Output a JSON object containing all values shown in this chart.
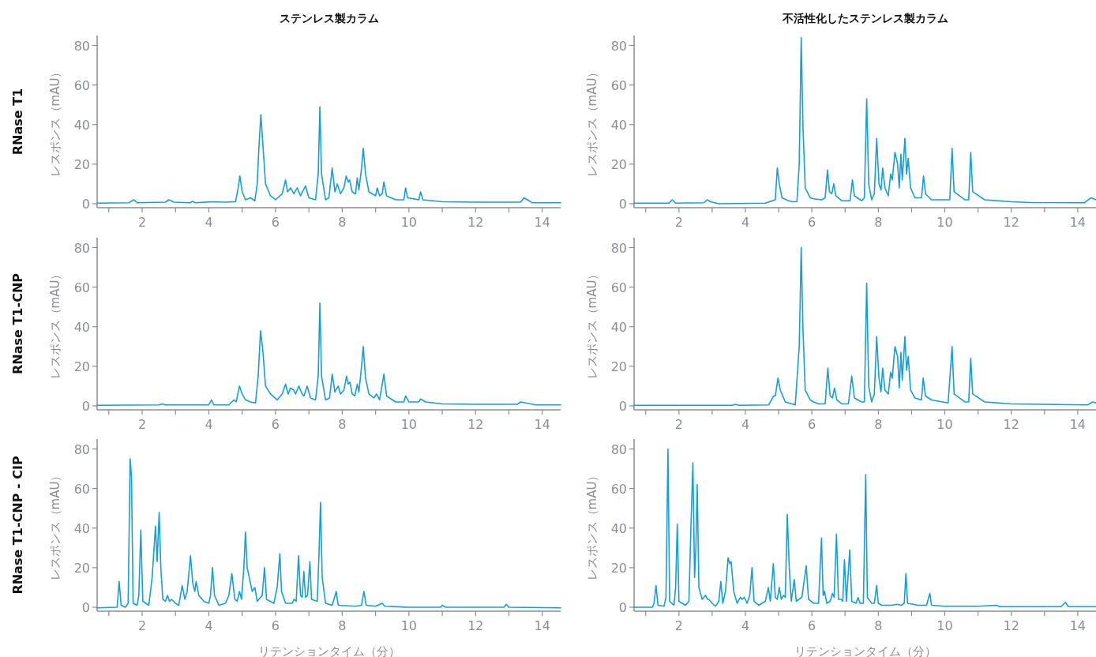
{
  "chart_data": [
    {
      "type": "line",
      "title": "ステンレス製カラム",
      "ylabel": "レスポンス（mAU）",
      "annotations": [
        "RNase T1"
      ],
      "color": "#129fdf",
      "xlim": [
        0.65,
        14.55
      ],
      "ylim": [
        -2,
        85
      ],
      "xticks": [
        {
          "value": 1,
          "label": null
        },
        2,
        {
          "value": 3,
          "label": null
        },
        4,
        {
          "value": 5,
          "label": null
        },
        6,
        {
          "value": 7,
          "label": null
        },
        8,
        {
          "value": 9,
          "label": null
        },
        10,
        {
          "value": 11,
          "label": null
        },
        12,
        {
          "value": 13,
          "label": null
        },
        14
      ],
      "yticks": [
        0,
        20,
        40,
        60,
        80
      ],
      "x": [
        0.65,
        1.6,
        1.75,
        1.85,
        2.7,
        2.8,
        2.95,
        3.45,
        3.5,
        3.6,
        4.1,
        4.5,
        4.8,
        4.88,
        4.93,
        5.0,
        5.1,
        5.25,
        5.38,
        5.45,
        5.5,
        5.56,
        5.62,
        5.7,
        5.85,
        6.0,
        6.2,
        6.3,
        6.36,
        6.45,
        6.55,
        6.65,
        6.75,
        6.9,
        7.0,
        7.2,
        7.28,
        7.33,
        7.38,
        7.5,
        7.6,
        7.7,
        7.78,
        7.85,
        7.95,
        8.05,
        8.12,
        8.18,
        8.22,
        8.3,
        8.4,
        8.45,
        8.5,
        8.58,
        8.63,
        8.7,
        8.8,
        9.0,
        9.05,
        9.12,
        9.2,
        9.25,
        9.33,
        9.6,
        9.85,
        9.9,
        9.96,
        10.3,
        10.35,
        10.42,
        11,
        12,
        13.35,
        13.45,
        13.55,
        13.7,
        14.55
      ],
      "values": [
        0.3,
        0.5,
        2,
        0.5,
        0.8,
        2,
        0.8,
        0.5,
        1.2,
        0.5,
        1,
        0.8,
        1,
        8,
        14,
        6,
        2,
        3,
        1.5,
        10,
        28,
        45,
        30,
        10,
        4,
        2,
        5,
        12,
        6,
        8,
        5,
        8,
        4,
        9,
        3,
        2,
        15,
        49,
        15,
        2,
        3,
        18,
        6,
        10,
        5,
        8,
        14,
        11,
        12,
        6,
        5,
        13,
        7,
        18,
        28,
        15,
        6,
        4,
        8,
        4,
        5,
        11,
        4,
        2,
        2,
        8,
        3,
        2,
        6,
        2,
        1,
        0.8,
        0.8,
        3,
        2,
        0.5,
        0.5
      ]
    },
    {
      "type": "line",
      "title": "不活性化したステンレス製カラム",
      "ylabel": "レスポンス（mAU）",
      "color": "#129fdf",
      "xlim": [
        0.65,
        14.55
      ],
      "ylim": [
        -2,
        85
      ],
      "xticks": [
        {
          "value": 1,
          "label": null
        },
        2,
        {
          "value": 3,
          "label": null
        },
        4,
        {
          "value": 5,
          "label": null
        },
        6,
        {
          "value": 7,
          "label": null
        },
        8,
        {
          "value": 9,
          "label": null
        },
        10,
        {
          "value": 11,
          "label": null
        },
        12,
        {
          "value": 13,
          "label": null
        },
        14
      ],
      "yticks": [
        0,
        20,
        40,
        60,
        80
      ],
      "x": [
        0.65,
        1.7,
        1.8,
        1.9,
        2.75,
        2.85,
        2.95,
        3.2,
        4.6,
        4.9,
        4.96,
        5.02,
        5.1,
        5.3,
        5.4,
        5.55,
        5.62,
        5.68,
        5.73,
        5.8,
        5.95,
        6.05,
        6.3,
        6.4,
        6.47,
        6.53,
        6.6,
        6.66,
        6.72,
        6.9,
        7.15,
        7.22,
        7.28,
        7.5,
        7.58,
        7.65,
        7.71,
        7.8,
        7.88,
        7.95,
        8.02,
        8.08,
        8.13,
        8.2,
        8.3,
        8.37,
        8.42,
        8.5,
        8.58,
        8.63,
        8.68,
        8.72,
        8.8,
        8.85,
        8.9,
        8.97,
        9.1,
        9.3,
        9.36,
        9.42,
        9.6,
        10.15,
        10.22,
        10.28,
        10.6,
        10.72,
        10.78,
        10.84,
        11.2,
        12.0,
        12.6,
        14.2,
        14.4,
        14.55
      ],
      "values": [
        0.3,
        0.3,
        2,
        0.3,
        0.5,
        2,
        1,
        0,
        0.3,
        2,
        18,
        10,
        3,
        1.5,
        1,
        1,
        20,
        84,
        40,
        8,
        3,
        2.5,
        2,
        3,
        17,
        6,
        5,
        10,
        4,
        1.5,
        1.5,
        12,
        4,
        1.5,
        3,
        53,
        10,
        2,
        5,
        33,
        10,
        7,
        18,
        8,
        4,
        15,
        12,
        26,
        20,
        8,
        25,
        12,
        33,
        15,
        23,
        8,
        3,
        3,
        14,
        5,
        2,
        2,
        28,
        6,
        2,
        2,
        26,
        6,
        2,
        1,
        0.6,
        0.5,
        3,
        2
      ]
    },
    {
      "type": "line",
      "ylabel": "レスポンス（mAU）",
      "annotations": [
        "RNase T1-CNP"
      ],
      "color": "#129fdf",
      "xlim": [
        0.65,
        14.55
      ],
      "ylim": [
        -2,
        85
      ],
      "xticks": [
        {
          "value": 1,
          "label": null
        },
        2,
        {
          "value": 3,
          "label": null
        },
        4,
        {
          "value": 5,
          "label": null
        },
        6,
        {
          "value": 7,
          "label": null
        },
        8,
        {
          "value": 9,
          "label": null
        },
        10,
        {
          "value": 11,
          "label": null
        },
        12,
        {
          "value": 13,
          "label": null
        },
        14
      ],
      "yticks": [
        0,
        20,
        40,
        60,
        80
      ],
      "x": [
        0.65,
        2.5,
        2.6,
        2.7,
        4.0,
        4.08,
        4.15,
        4.6,
        4.75,
        4.82,
        4.92,
        5.0,
        5.1,
        5.25,
        5.4,
        5.48,
        5.55,
        5.62,
        5.7,
        5.85,
        6.05,
        6.2,
        6.3,
        6.38,
        6.45,
        6.55,
        6.6,
        6.7,
        6.8,
        6.85,
        6.95,
        7.05,
        7.2,
        7.28,
        7.33,
        7.38,
        7.5,
        7.62,
        7.7,
        7.78,
        7.88,
        7.95,
        8.05,
        8.13,
        8.18,
        8.23,
        8.3,
        8.38,
        8.45,
        8.5,
        8.58,
        8.63,
        8.7,
        8.8,
        8.95,
        9.03,
        9.12,
        9.25,
        9.33,
        9.6,
        9.85,
        9.9,
        10.0,
        10.3,
        10.35,
        10.5,
        11,
        12,
        13.25,
        13.35,
        13.5,
        13.8,
        14.55
      ],
      "values": [
        0.3,
        0.5,
        1,
        0.5,
        0.5,
        3,
        0.5,
        0.5,
        3,
        2,
        10,
        6,
        3,
        2,
        1.5,
        15,
        38,
        28,
        10,
        6,
        3,
        6,
        11,
        6,
        9,
        8,
        6,
        10,
        6,
        5,
        10,
        4,
        3,
        15,
        52,
        15,
        3,
        4,
        16,
        7,
        10,
        6,
        8,
        15,
        11,
        12,
        6,
        5,
        11,
        7,
        20,
        30,
        14,
        6,
        4,
        6,
        3,
        16,
        5,
        2,
        2,
        5,
        2,
        2,
        3.5,
        2,
        1,
        0.8,
        0.8,
        2,
        1.5,
        0.5,
        0.5
      ]
    },
    {
      "type": "line",
      "ylabel": "レスポンス（mAU）",
      "color": "#129fdf",
      "xlim": [
        0.65,
        14.55
      ],
      "ylim": [
        -2,
        85
      ],
      "xticks": [
        {
          "value": 1,
          "label": null
        },
        2,
        {
          "value": 3,
          "label": null
        },
        4,
        {
          "value": 5,
          "label": null
        },
        6,
        {
          "value": 7,
          "label": null
        },
        8,
        {
          "value": 9,
          "label": null
        },
        10,
        {
          "value": 11,
          "label": null
        },
        12,
        {
          "value": 13,
          "label": null
        },
        14
      ],
      "yticks": [
        0,
        20,
        40,
        60,
        80
      ],
      "x": [
        0.65,
        3.6,
        3.7,
        3.8,
        4.7,
        4.85,
        4.9,
        4.98,
        5.05,
        5.2,
        5.5,
        5.62,
        5.68,
        5.73,
        5.8,
        5.95,
        6.05,
        6.2,
        6.4,
        6.48,
        6.55,
        6.62,
        6.68,
        6.75,
        6.9,
        7.1,
        7.2,
        7.28,
        7.5,
        7.58,
        7.65,
        7.71,
        7.8,
        7.88,
        7.95,
        8.02,
        8.08,
        8.13,
        8.2,
        8.3,
        8.37,
        8.42,
        8.5,
        8.58,
        8.63,
        8.68,
        8.72,
        8.8,
        8.85,
        8.9,
        8.97,
        9.1,
        9.3,
        9.35,
        9.42,
        9.6,
        10.1,
        10.22,
        10.28,
        10.6,
        10.72,
        10.78,
        10.84,
        11.2,
        12.0,
        14.3,
        14.45,
        14.55
      ],
      "values": [
        0.3,
        0.3,
        0.8,
        0.3,
        0.5,
        5,
        5,
        14,
        8,
        2,
        0.5,
        30,
        80,
        40,
        8,
        3,
        2,
        1,
        1,
        19,
        5,
        4,
        9,
        3,
        1,
        1,
        15,
        4,
        2,
        2,
        62,
        10,
        2,
        6,
        35,
        14,
        7,
        19,
        8,
        6,
        17,
        14,
        30,
        25,
        9,
        27,
        13,
        35,
        18,
        25,
        8,
        4,
        3,
        14,
        5,
        3,
        1.5,
        30,
        6,
        2,
        2,
        24,
        6,
        2,
        1,
        0.5,
        2,
        1.5
      ]
    },
    {
      "type": "line",
      "ylabel": "レスポンス（mAU）",
      "xlabel": "リテンションタイム（分）",
      "annotations": [
        "RNase T1-CNP - CIP"
      ],
      "color": "#129fdf",
      "xlim": [
        0.65,
        14.55
      ],
      "ylim": [
        -2,
        85
      ],
      "xticks": [
        {
          "value": 1,
          "label": null
        },
        2,
        {
          "value": 3,
          "label": null
        },
        4,
        {
          "value": 5,
          "label": null
        },
        6,
        {
          "value": 7,
          "label": null
        },
        8,
        {
          "value": 9,
          "label": null
        },
        10,
        {
          "value": 11,
          "label": null
        },
        12,
        {
          "value": 13,
          "label": null
        },
        14
      ],
      "yticks": [
        0,
        20,
        40,
        60,
        80
      ],
      "x": [
        0.65,
        1.25,
        1.31,
        1.37,
        1.5,
        1.58,
        1.64,
        1.68,
        1.73,
        1.85,
        1.9,
        1.96,
        2.02,
        2.2,
        2.3,
        2.4,
        2.45,
        2.51,
        2.56,
        2.62,
        2.7,
        2.76,
        2.82,
        2.88,
        3.0,
        3.1,
        3.2,
        3.28,
        3.35,
        3.45,
        3.52,
        3.58,
        3.62,
        3.7,
        3.85,
        4.0,
        4.05,
        4.11,
        4.17,
        4.3,
        4.5,
        4.6,
        4.69,
        4.78,
        4.85,
        4.92,
        4.98,
        5.05,
        5.1,
        5.15,
        5.2,
        5.3,
        5.38,
        5.45,
        5.6,
        5.67,
        5.73,
        5.95,
        6.05,
        6.13,
        6.18,
        6.3,
        6.5,
        6.55,
        6.62,
        6.69,
        6.75,
        6.8,
        6.85,
        6.9,
        6.96,
        7.03,
        7.08,
        7.25,
        7.3,
        7.35,
        7.4,
        7.5,
        7.7,
        7.82,
        7.88,
        8.4,
        8.58,
        8.65,
        8.72,
        9.0,
        9.2,
        9.28,
        10,
        10.95,
        11.0,
        11.1,
        12.85,
        12.92,
        13.0,
        14.55
      ],
      "values": [
        -0.3,
        0,
        13,
        1,
        0,
        2,
        75,
        66,
        2,
        1,
        6,
        39,
        3,
        1,
        15,
        41,
        23,
        48,
        20,
        4,
        3,
        6,
        3,
        4,
        2,
        1,
        11,
        4,
        8,
        26,
        12,
        8,
        13,
        6,
        3,
        2,
        6,
        20,
        6,
        1,
        2,
        6,
        17,
        4,
        3,
        8,
        4,
        20,
        38,
        20,
        16,
        8,
        10,
        3,
        6,
        20,
        4,
        2,
        10,
        27,
        8,
        2,
        2,
        4,
        3,
        26,
        6,
        5,
        18,
        5,
        6,
        23,
        4,
        3,
        25,
        53,
        15,
        2,
        1,
        8,
        1,
        0.5,
        1,
        8,
        1,
        0.5,
        2,
        0.5,
        0,
        0,
        1,
        0,
        0,
        1.5,
        0,
        -0.3
      ]
    },
    {
      "type": "line",
      "ylabel": "レスポンス（mAU）",
      "xlabel": "リテンションタイム（分）",
      "color": "#129fdf",
      "xlim": [
        0.65,
        14.55
      ],
      "ylim": [
        -2,
        85
      ],
      "xticks": [
        {
          "value": 1,
          "label": null
        },
        2,
        {
          "value": 3,
          "label": null
        },
        4,
        {
          "value": 5,
          "label": null
        },
        6,
        {
          "value": 7,
          "label": null
        },
        8,
        {
          "value": 9,
          "label": null
        },
        10,
        {
          "value": 11,
          "label": null
        },
        12,
        {
          "value": 13,
          "label": null
        },
        14
      ],
      "yticks": [
        0,
        20,
        40,
        60,
        80
      ],
      "x": [
        0.65,
        1.2,
        1.25,
        1.31,
        1.37,
        1.55,
        1.61,
        1.67,
        1.72,
        1.85,
        1.9,
        1.95,
        2.0,
        2.2,
        2.3,
        2.36,
        2.42,
        2.47,
        2.51,
        2.55,
        2.6,
        2.7,
        2.8,
        2.86,
        2.9,
        3.0,
        3.1,
        3.2,
        3.26,
        3.32,
        3.4,
        3.48,
        3.53,
        3.57,
        3.65,
        3.75,
        3.85,
        3.9,
        3.97,
        4.05,
        4.13,
        4.2,
        4.26,
        4.4,
        4.6,
        4.69,
        4.75,
        4.84,
        4.9,
        4.96,
        5.02,
        5.08,
        5.15,
        5.2,
        5.26,
        5.32,
        5.38,
        5.47,
        5.53,
        5.7,
        5.83,
        5.9,
        6.05,
        6.2,
        6.29,
        6.34,
        6.38,
        6.45,
        6.55,
        6.62,
        6.67,
        6.74,
        6.8,
        6.88,
        6.93,
        6.98,
        7.04,
        7.14,
        7.2,
        7.33,
        7.39,
        7.45,
        7.55,
        7.62,
        7.67,
        7.8,
        7.88,
        7.95,
        8.0,
        8.1,
        8.4,
        8.55,
        8.7,
        8.78,
        8.83,
        8.88,
        9.2,
        9.45,
        9.55,
        9.6,
        10,
        11.0,
        11.55,
        11.65,
        13.5,
        13.63,
        13.72,
        14.55
      ],
      "values": [
        0,
        0,
        2,
        11,
        1,
        0.5,
        5,
        80,
        3,
        1,
        10,
        42,
        3,
        1,
        3,
        40,
        73,
        15,
        30,
        62,
        10,
        4,
        6,
        4,
        4,
        2,
        0.5,
        3,
        13,
        2,
        8,
        25,
        22,
        23,
        8,
        2,
        5,
        4,
        5,
        2,
        6,
        20,
        3,
        1,
        3,
        10,
        3,
        22,
        5,
        4,
        10,
        4,
        6,
        5,
        47,
        20,
        3,
        14,
        3,
        5,
        21,
        4,
        2,
        2,
        35,
        6,
        8,
        2,
        3,
        7,
        5,
        37,
        4,
        4,
        3,
        24,
        3,
        29,
        3,
        2,
        5,
        2,
        2,
        67,
        5,
        2,
        2,
        11,
        2,
        1,
        1,
        1.5,
        1,
        2,
        17,
        2,
        1,
        1,
        7,
        1,
        0.5,
        0.5,
        1,
        0.3,
        0.3,
        2.5,
        0.3,
        0.3
      ]
    }
  ]
}
